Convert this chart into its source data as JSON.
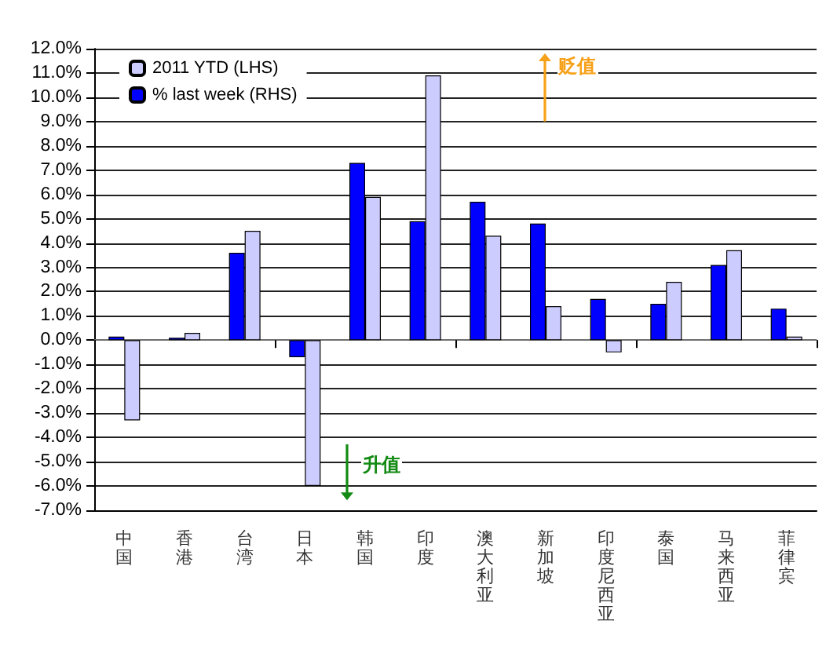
{
  "chart_data": {
    "type": "bar",
    "categories": [
      "中国",
      "香港",
      "台湾",
      "日本",
      "韩国",
      "印度",
      "澳大利亚",
      "新加坡",
      "印度尼西亚",
      "泰国",
      "马来西亚",
      "菲律宾"
    ],
    "series": [
      {
        "name": "% last week (RHS)",
        "color": "#0000ff",
        "values": [
          0.15,
          0.1,
          3.6,
          -0.7,
          7.3,
          4.9,
          5.7,
          4.8,
          1.7,
          1.5,
          3.1,
          1.3
        ]
      },
      {
        "name": "2011 YTD (LHS)",
        "color": "#ccccff",
        "values": [
          -3.3,
          0.3,
          4.5,
          -6.0,
          5.9,
          10.9,
          4.3,
          1.4,
          -0.5,
          2.4,
          3.7,
          0.15
        ]
      }
    ],
    "ylim": [
      -7,
      12
    ],
    "yticks": [
      {
        "value": -7,
        "label": "-7.0%"
      },
      {
        "value": -6,
        "label": "-6.0%"
      },
      {
        "value": -5,
        "label": "-5.0%"
      },
      {
        "value": -4,
        "label": "-4.0%"
      },
      {
        "value": -3,
        "label": "-3.0%"
      },
      {
        "value": -2,
        "label": "-2.0%"
      },
      {
        "value": -1,
        "label": "-1.0%"
      },
      {
        "value": 0,
        "label": "0.0%"
      },
      {
        "value": 1,
        "label": "1.0%"
      },
      {
        "value": 2,
        "label": "2.0%"
      },
      {
        "value": 3,
        "label": "3.0%"
      },
      {
        "value": 4,
        "label": "4.0%"
      },
      {
        "value": 5,
        "label": "5.0%"
      },
      {
        "value": 6,
        "label": "6.0%"
      },
      {
        "value": 7,
        "label": "7.0%"
      },
      {
        "value": 8,
        "label": "8.0%"
      },
      {
        "value": 9,
        "label": "9.0%"
      },
      {
        "value": 10,
        "label": "10.0%"
      },
      {
        "value": 11,
        "label": "11.0%"
      },
      {
        "value": 12,
        "label": "12.0%"
      }
    ],
    "grid": "y",
    "legend": "top left",
    "annotations": [
      "贬值",
      "升值"
    ]
  }
}
